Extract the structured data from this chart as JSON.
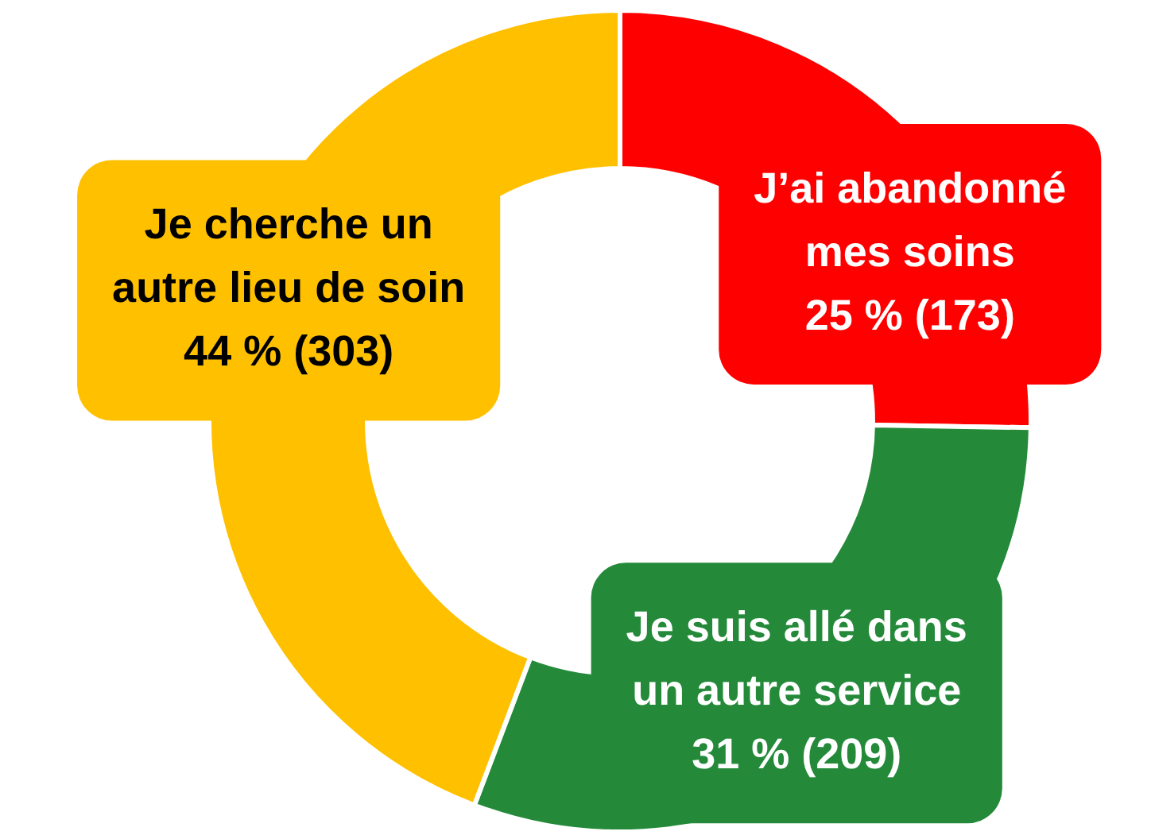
{
  "chart_data": {
    "type": "donut",
    "categories": [
      "J’ai abandonné mes soins",
      "Je suis allé dans un autre service",
      "Je cherche un autre lieu de soin"
    ],
    "values": [
      173,
      209,
      303
    ],
    "colors": [
      "#ff0000",
      "#248a3a",
      "#ffc000"
    ],
    "value_labels": [
      "25 % (173)",
      "31 % (209)",
      "44 % (303)"
    ],
    "legend": false
  }
}
